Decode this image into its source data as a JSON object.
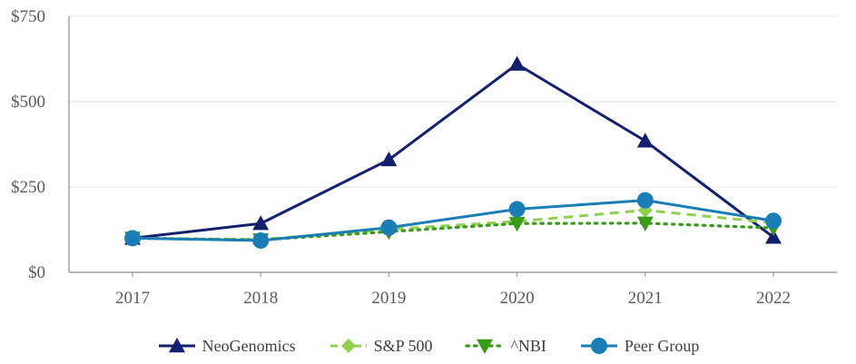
{
  "chart_data": {
    "type": "line",
    "categories": [
      "2017",
      "2018",
      "2019",
      "2020",
      "2021",
      "2022"
    ],
    "ylim": [
      0,
      750
    ],
    "y_ticks": [
      "$0",
      "$250",
      "$500",
      "$750"
    ],
    "y_tick_values": [
      0,
      250,
      500,
      750
    ],
    "grid": "horizontal",
    "legend_position": "bottom",
    "series": [
      {
        "name": "NeoGenomics",
        "values": [
          100,
          143,
          330,
          610,
          385,
          103
        ],
        "color": "#14206e",
        "style": "solid",
        "marker": "triangle-up"
      },
      {
        "name": "S&P 500",
        "values": [
          100,
          96,
          126,
          149,
          182,
          145
        ],
        "color": "#8fd14f",
        "style": "dashed",
        "marker": "diamond"
      },
      {
        "name": "^NBI",
        "values": [
          100,
          95,
          119,
          143,
          144,
          130
        ],
        "color": "#3a9a1a",
        "style": "dotted",
        "marker": "triangle-down"
      },
      {
        "name": "Peer Group",
        "values": [
          100,
          93,
          131,
          185,
          211,
          151
        ],
        "color": "#1a7db5",
        "style": "solid",
        "marker": "circle"
      }
    ]
  }
}
